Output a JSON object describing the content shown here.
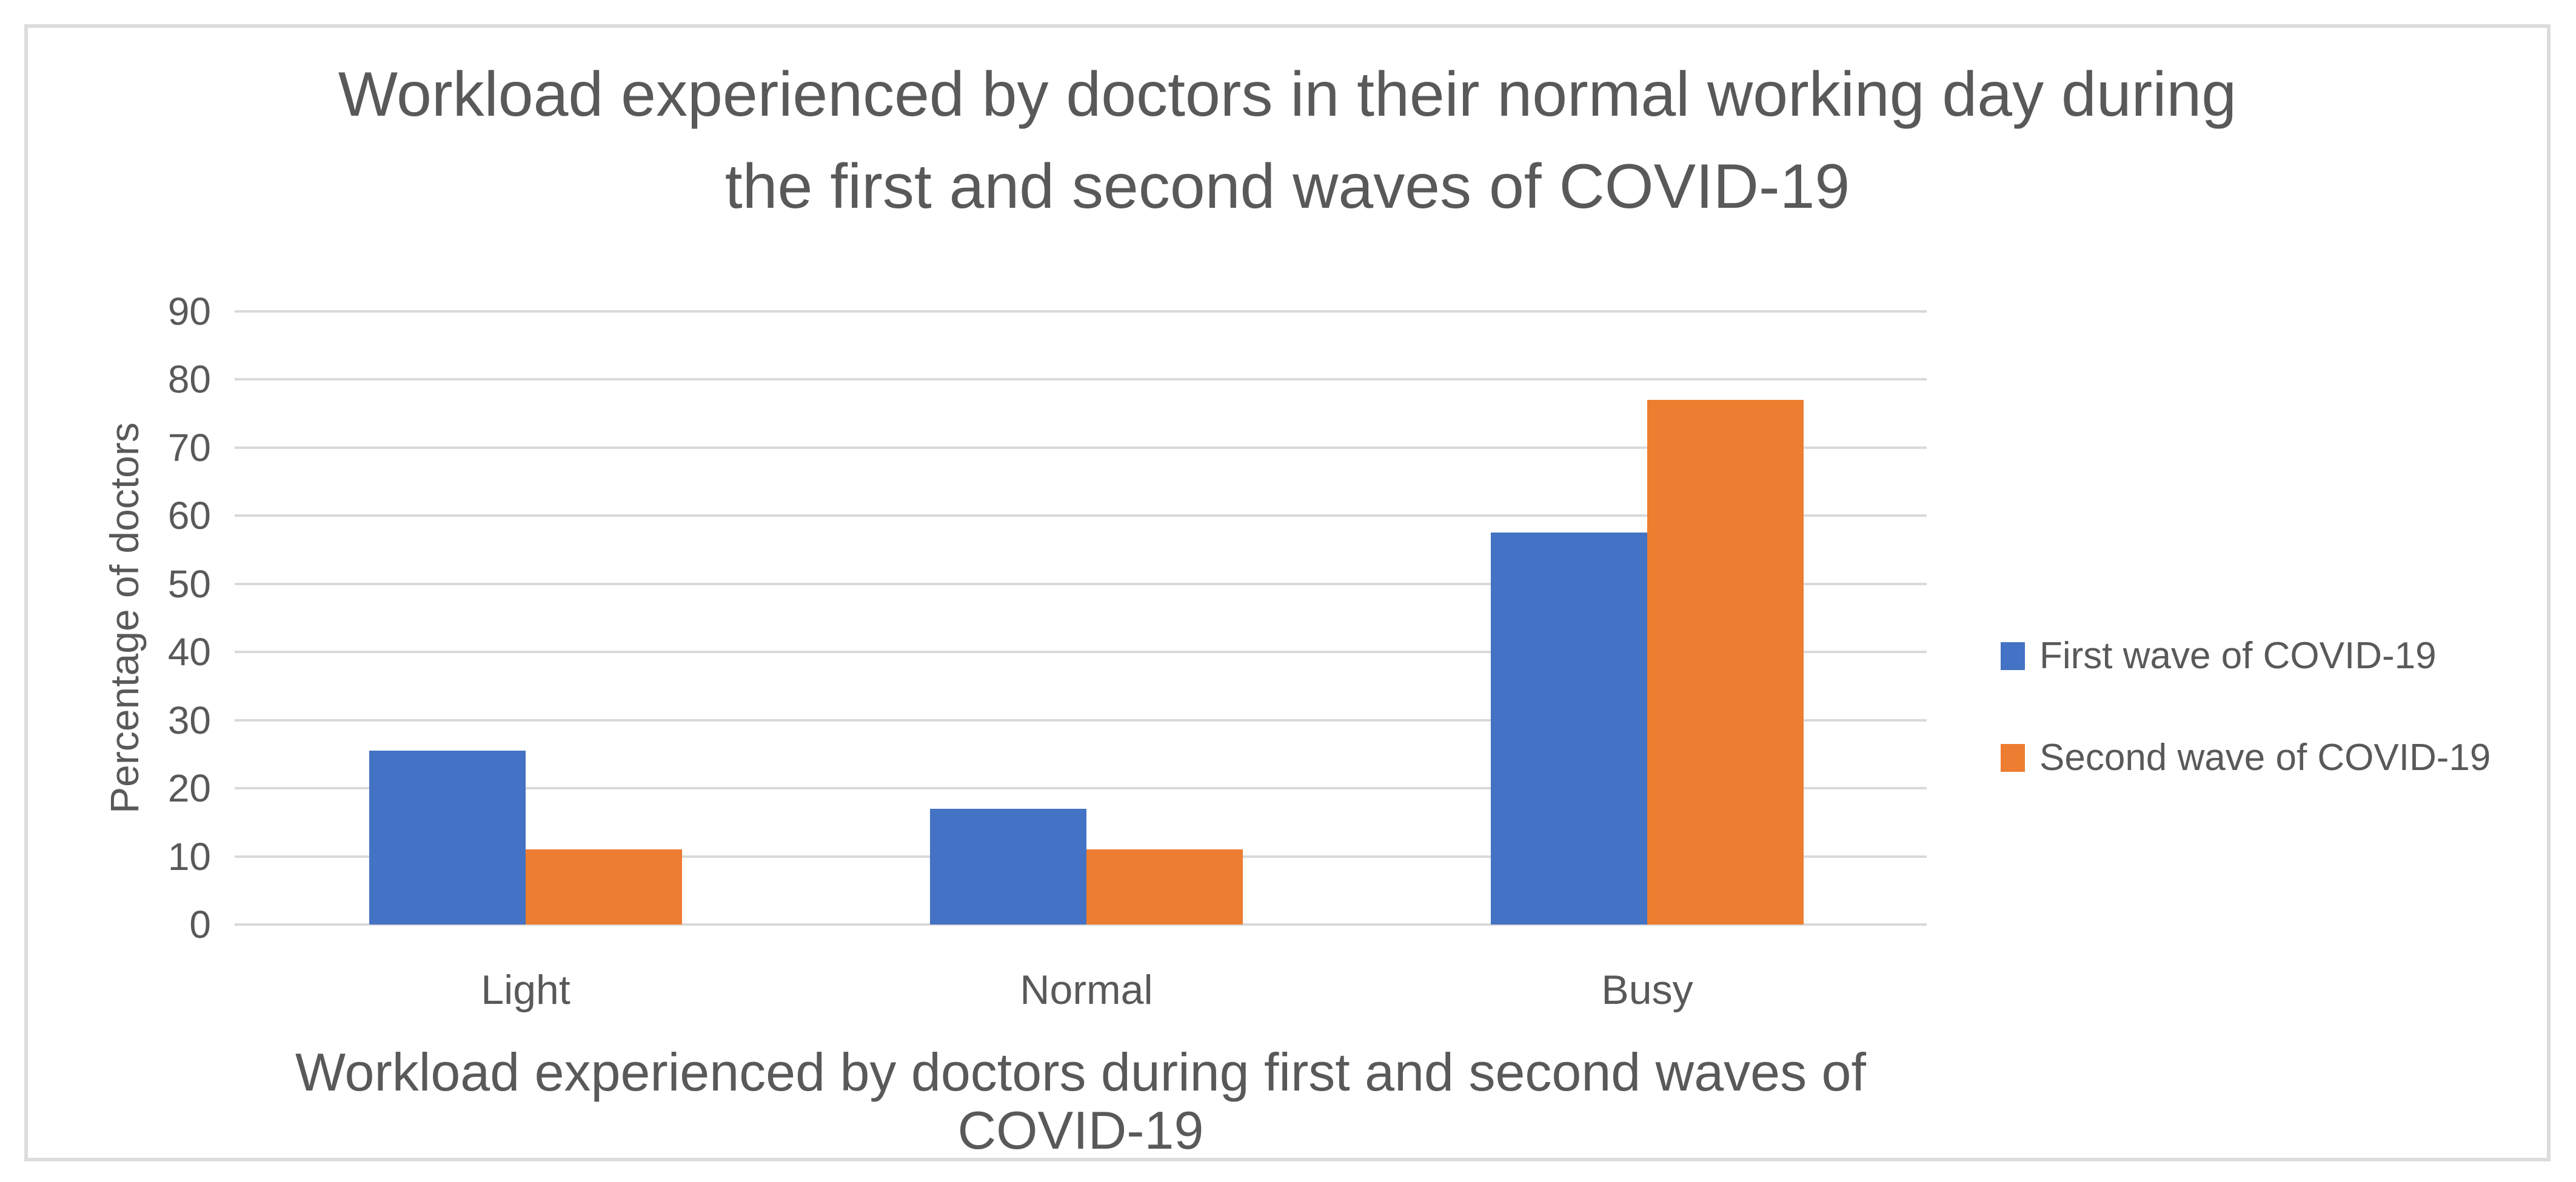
{
  "chart_data": {
    "type": "bar",
    "title": "Workload experienced by doctors in their normal working day during the first and second waves of COVID-19",
    "title_lines": [
      "Workload experienced by doctors in their normal working day during",
      "the first and second waves of COVID-19"
    ],
    "categories": [
      "Light",
      "Normal",
      "Busy"
    ],
    "series": [
      {
        "name": "First wave of COVID-19",
        "color": "#4472C4",
        "values": [
          25.5,
          17,
          57.5
        ]
      },
      {
        "name": "Second wave of COVID-19",
        "color": "#ED7D31",
        "values": [
          11,
          11,
          77
        ]
      }
    ],
    "xlabel": "Workload experienced by doctors during first and second waves of COVID-19",
    "ylabel": "Percentage of doctors",
    "ylim": [
      0,
      90
    ],
    "yticks": [
      0,
      10,
      20,
      30,
      40,
      50,
      60,
      70,
      80,
      90
    ],
    "grid": true,
    "legend_position": "right",
    "colors": {
      "text": "#595959",
      "gridline": "#d9d9d9",
      "frame_border": "#dcdcdc",
      "background": "#ffffff"
    }
  }
}
